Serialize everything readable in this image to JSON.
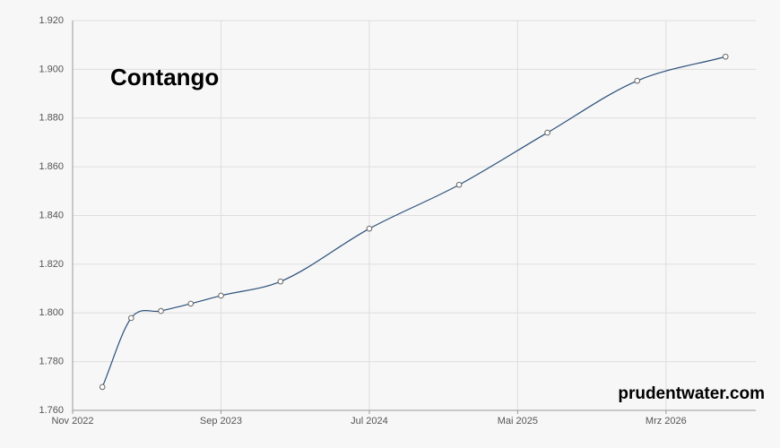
{
  "chart_data": {
    "type": "line",
    "title": "Contango",
    "watermark": "prudentwater.com",
    "x": [
      "2023-01",
      "2023-03",
      "2023-05",
      "2023-07",
      "2023-09",
      "2024-01",
      "2024-07",
      "2025-01",
      "2025-07",
      "2026-01",
      "2026-07"
    ],
    "series": [
      {
        "name": "Contango",
        "color": "#2b4f7a",
        "values": [
          1.7696,
          1.7979,
          1.8008,
          1.8038,
          1.8071,
          1.8129,
          1.8346,
          1.8526,
          1.874,
          1.8953,
          1.9052
        ]
      }
    ],
    "xlim": [
      "2022-11",
      "2026-09"
    ],
    "xticks": [
      {
        "value": "2022-11",
        "label": "Nov 2022"
      },
      {
        "value": "2023-09",
        "label": "Sep 2023"
      },
      {
        "value": "2024-07",
        "label": "Jul 2024"
      },
      {
        "value": "2025-05",
        "label": "Mai 2025"
      },
      {
        "value": "2026-03",
        "label": "Mrz 2026"
      }
    ],
    "ylim": [
      1.76,
      1.92
    ],
    "yticks": [
      {
        "value": 1.76,
        "label": "1.760"
      },
      {
        "value": 1.78,
        "label": "1.780"
      },
      {
        "value": 1.8,
        "label": "1.800"
      },
      {
        "value": 1.82,
        "label": "1.820"
      },
      {
        "value": 1.84,
        "label": "1.840"
      },
      {
        "value": 1.86,
        "label": "1.860"
      },
      {
        "value": 1.88,
        "label": "1.880"
      },
      {
        "value": 1.9,
        "label": "1.900"
      },
      {
        "value": 1.92,
        "label": "1.920"
      }
    ],
    "grid": true
  }
}
